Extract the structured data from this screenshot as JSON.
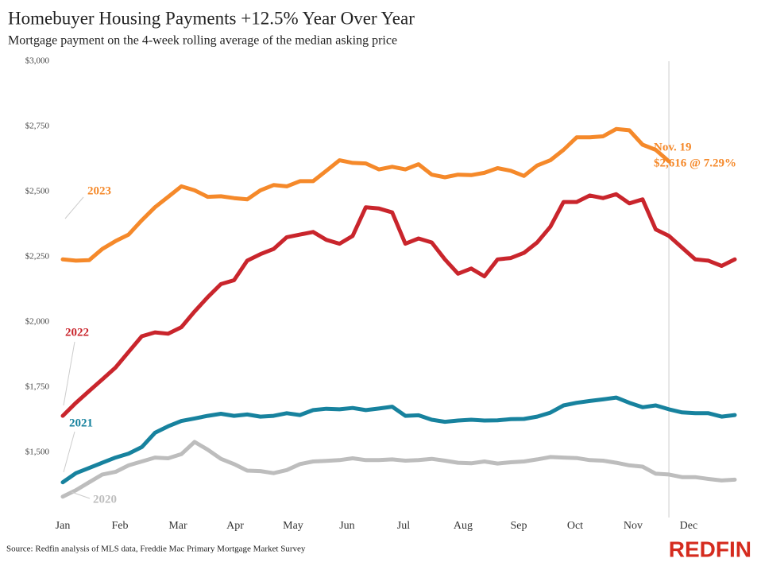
{
  "chart_data": {
    "type": "line",
    "title": "Homebuyer Housing Payments +12.5% Year Over Year",
    "subtitle": "Mortgage payment on the 4-week rolling average of the median asking price",
    "source": "Source: Redfin analysis of MLS data, Freddie Mac Primary Mortgage Market Survey",
    "brand": "REDFIN",
    "annotation": [
      "Nov. 19",
      "$2,616 @ 7.29%"
    ],
    "x": [
      0,
      1,
      2,
      3,
      4,
      5,
      6,
      7,
      8,
      9,
      10,
      11,
      12,
      13,
      14,
      15,
      16,
      17,
      18,
      19,
      20,
      21,
      22,
      23,
      24,
      25,
      26,
      27,
      28,
      29,
      30,
      31,
      32,
      33,
      34,
      35,
      36,
      37,
      38,
      39,
      40,
      41,
      42,
      43,
      44,
      45,
      46,
      47,
      48,
      49,
      50,
      51
    ],
    "xlim": [
      0,
      51
    ],
    "xticks": [
      {
        "value": 0,
        "label": "Jan"
      },
      {
        "value": 4.34,
        "label": "Feb"
      },
      {
        "value": 8.74,
        "label": "Mar"
      },
      {
        "value": 13.08,
        "label": "Apr"
      },
      {
        "value": 17.48,
        "label": "May"
      },
      {
        "value": 21.58,
        "label": "Jun"
      },
      {
        "value": 25.86,
        "label": "Jul"
      },
      {
        "value": 30.38,
        "label": "Aug"
      },
      {
        "value": 34.6,
        "label": "Sep"
      },
      {
        "value": 38.88,
        "label": "Oct"
      },
      {
        "value": 43.28,
        "label": "Nov"
      },
      {
        "value": 47.5,
        "label": "Dec"
      }
    ],
    "ylim": [
      1250,
      3000
    ],
    "yticks": [
      {
        "value": 1500,
        "label": "$1,500"
      },
      {
        "value": 1750,
        "label": "$1,750"
      },
      {
        "value": 2000,
        "label": "$2,000"
      },
      {
        "value": 2250,
        "label": "$2,250"
      },
      {
        "value": 2500,
        "label": "$2,500"
      },
      {
        "value": 2750,
        "label": "$2,750"
      },
      {
        "value": 3000,
        "label": "$3,000"
      }
    ],
    "grid": false,
    "series": [
      {
        "name": "2023",
        "color": "#f5892a",
        "values": [
          2240,
          2235,
          2237,
          2280,
          2310,
          2335,
          2390,
          2440,
          2480,
          2520,
          2505,
          2480,
          2482,
          2475,
          2470,
          2505,
          2525,
          2520,
          2540,
          2540,
          2580,
          2620,
          2610,
          2608,
          2585,
          2595,
          2585,
          2605,
          2565,
          2555,
          2565,
          2563,
          2572,
          2590,
          2580,
          2560,
          2600,
          2620,
          2660,
          2708,
          2708,
          2712,
          2740,
          2735,
          2680,
          2660,
          2616,
          null,
          null,
          null,
          null,
          null
        ]
      },
      {
        "name": "2022",
        "color": "#c9252c",
        "values": [
          1640,
          1690,
          1735,
          1780,
          1825,
          1885,
          1945,
          1960,
          1955,
          1980,
          2040,
          2095,
          2145,
          2160,
          2235,
          2260,
          2280,
          2325,
          2335,
          2345,
          2315,
          2300,
          2330,
          2440,
          2435,
          2420,
          2300,
          2320,
          2305,
          2240,
          2185,
          2205,
          2175,
          2240,
          2245,
          2265,
          2305,
          2365,
          2460,
          2460,
          2485,
          2475,
          2490,
          2455,
          2470,
          2355,
          2330,
          2285,
          2240,
          2235,
          2215,
          2240
        ]
      },
      {
        "name": "2021",
        "color": "#17829e",
        "values": [
          1385,
          1420,
          1440,
          1460,
          1480,
          1495,
          1520,
          1575,
          1600,
          1620,
          1630,
          1640,
          1648,
          1640,
          1645,
          1637,
          1640,
          1650,
          1643,
          1662,
          1667,
          1665,
          1670,
          1662,
          1668,
          1675,
          1640,
          1642,
          1625,
          1617,
          1622,
          1625,
          1622,
          1623,
          1627,
          1628,
          1637,
          1652,
          1680,
          1690,
          1697,
          1703,
          1710,
          1690,
          1673,
          1680,
          1665,
          1653,
          1650,
          1650,
          1637,
          1643
        ]
      },
      {
        "name": "2020",
        "color": "#bdbdbd",
        "values": [
          1330,
          1355,
          1385,
          1415,
          1425,
          1450,
          1465,
          1480,
          1477,
          1493,
          1540,
          1510,
          1475,
          1455,
          1430,
          1428,
          1420,
          1432,
          1455,
          1465,
          1467,
          1470,
          1477,
          1470,
          1470,
          1473,
          1468,
          1470,
          1475,
          1468,
          1460,
          1458,
          1465,
          1457,
          1462,
          1465,
          1473,
          1482,
          1480,
          1478,
          1470,
          1468,
          1460,
          1450,
          1445,
          1418,
          1415,
          1405,
          1405,
          1398,
          1392,
          1395
        ]
      }
    ]
  }
}
